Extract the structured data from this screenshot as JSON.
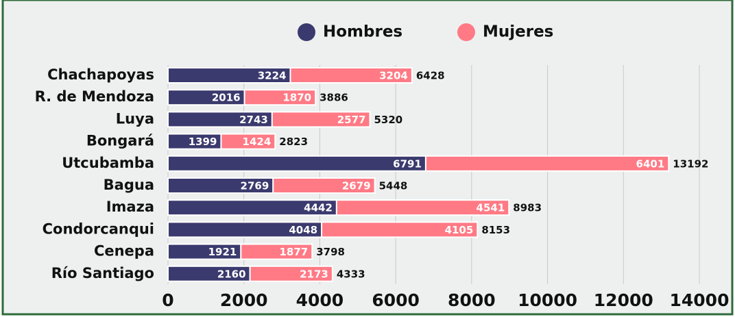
{
  "chart_data": {
    "type": "stacked-barh",
    "categories": [
      "Chachapoyas",
      "R. de Mendoza",
      "Luya",
      "Bongará",
      "Utcubamba",
      "Bagua",
      "Imaza",
      "Condorcanqui",
      "Cenepa",
      "Río Santiago"
    ],
    "series": [
      {
        "name": "Hombres",
        "color": "#3b3a6e",
        "values": [
          3224,
          2016,
          2743,
          1399,
          6791,
          2769,
          4442,
          4048,
          1921,
          2160
        ]
      },
      {
        "name": "Mujeres",
        "color": "#ff7a85",
        "values": [
          3204,
          1870,
          2577,
          1424,
          6401,
          2679,
          4541,
          4105,
          1877,
          2173
        ]
      }
    ],
    "totals": [
      6428,
      3886,
      5320,
      2823,
      13192,
      5448,
      8983,
      8153,
      3798,
      4333
    ],
    "xlim": [
      0,
      14000
    ],
    "xticks": [
      0,
      2000,
      4000,
      6000,
      8000,
      10000,
      12000,
      14000
    ],
    "grid": true,
    "legend": "top"
  }
}
